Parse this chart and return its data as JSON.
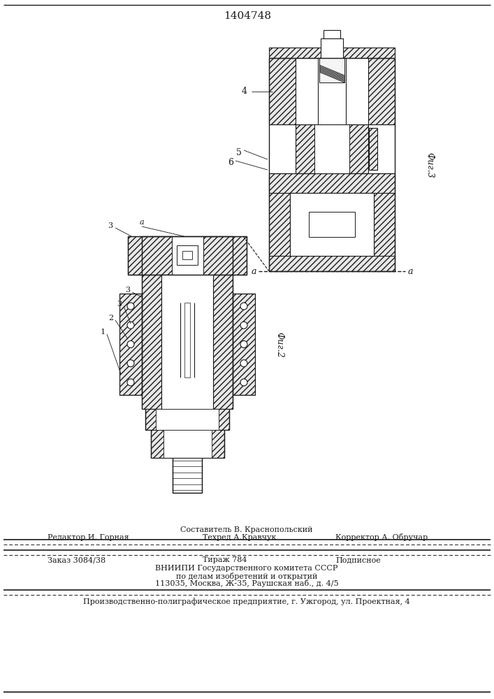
{
  "bg_color": "#ffffff",
  "line_color": "#1a1a1a",
  "hatch_color": "#1a1a1a",
  "title": "1404748",
  "fig2_label": "Фиг.2",
  "fig3_label": "Фиг.3",
  "footer": {
    "compiler": "Составитель В. Краснопольский",
    "editor": "Редактор И. Горная",
    "tech": "Техред А.Кравчук",
    "corrector": "Корректор А. Обручар",
    "order": "Заказ 3084/38",
    "tirazh": "Тираж 784",
    "podpisnoe": "Подписное",
    "vnipi1": "ВНИИПИ Государственного комитета СССР",
    "vnipi2": "по делам изобретений и открытий",
    "vnipi3": "113035, Москва, Ж-35, Раушская наб., д. 4/5",
    "production": "Производственно-полиграфическое предприятие, г. Ужгород, ул. Проектная, 4"
  }
}
